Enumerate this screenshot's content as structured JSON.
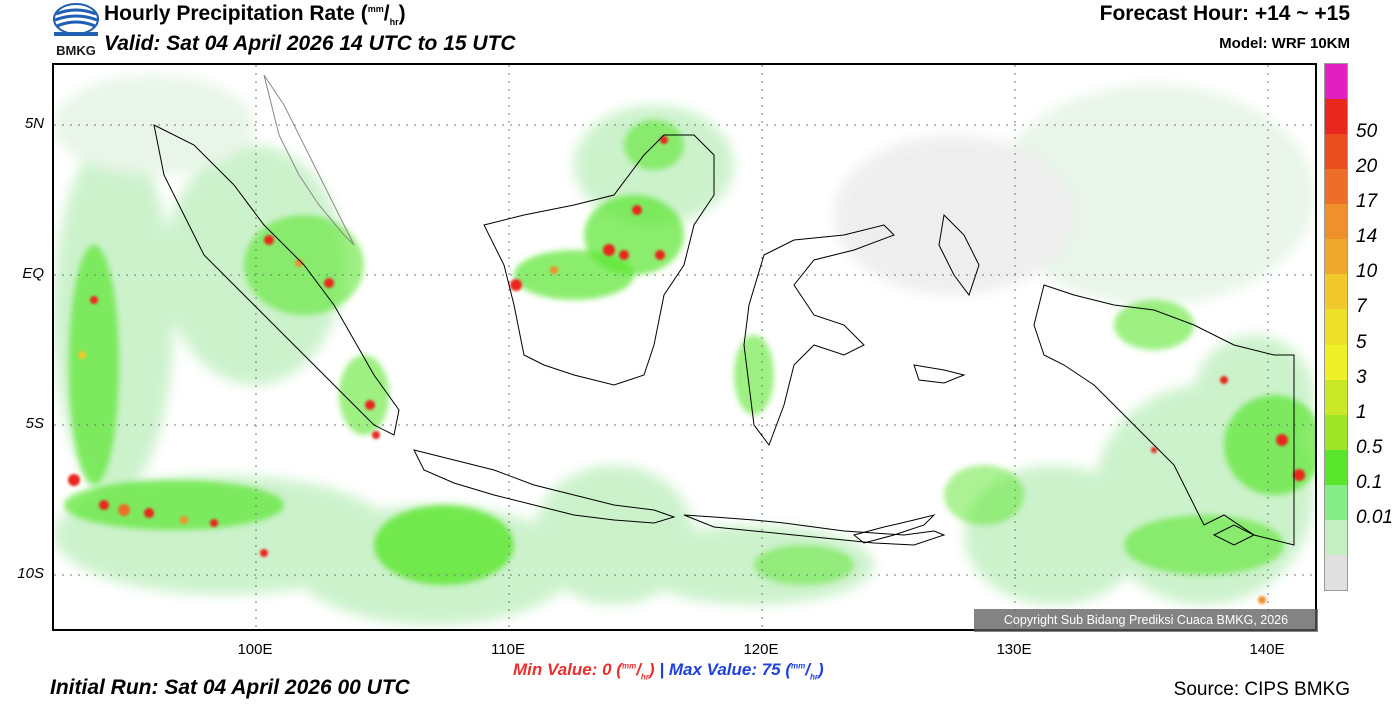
{
  "logo": {
    "icon": "bmkg-logo-icon",
    "text": "BMKG",
    "colors": [
      "#1f5fb4",
      "#ffffff"
    ]
  },
  "header": {
    "title_main": "Hourly Precipitation Rate (",
    "title_unit_sup": "mm",
    "title_unit_sub": "hr",
    "title_close": ")",
    "valid": "Valid: Sat 04 April 2026 14 UTC to 15 UTC",
    "forecast_hour": "Forecast Hour: +14 ~ +15",
    "model": "Model: WRF 10KM"
  },
  "map": {
    "lat_labels": [
      "5N",
      "EQ",
      "5S",
      "10S"
    ],
    "lon_labels": [
      "100E",
      "110E",
      "120E",
      "130E",
      "140E"
    ],
    "copyright": "Copyright Sub Bidang Prediksi Cuaca BMKG, 2026"
  },
  "colorbar": {
    "segments": [
      {
        "color": "#e020c0"
      },
      {
        "color": "#e8281e"
      },
      {
        "color": "#e84e1e"
      },
      {
        "color": "#ec6e28"
      },
      {
        "color": "#f0902c"
      },
      {
        "color": "#f0a82c"
      },
      {
        "color": "#f0c82c"
      },
      {
        "color": "#ece028"
      },
      {
        "color": "#f0f028"
      },
      {
        "color": "#c8e828"
      },
      {
        "color": "#a0e628"
      },
      {
        "color": "#5ae62c"
      },
      {
        "color": "#86ec86"
      },
      {
        "color": "#c4f0c4"
      },
      {
        "color": "#e0e0e0"
      }
    ],
    "labels": [
      "50",
      "20",
      "17",
      "14",
      "10",
      "7",
      "5",
      "3",
      "1",
      "0.5",
      "0.1",
      "0.01"
    ]
  },
  "footer": {
    "min_label": "Min Value:   0 (",
    "min_color": "#e83030",
    "max_label": "Max Value:  75 (",
    "max_color": "#2040e0",
    "unit_sup": "mm",
    "unit_sub": "hr",
    "unit_close": ")",
    "separator": "|",
    "initial_run": "Initial Run: Sat 04 April 2026 00 UTC",
    "source": "Source: CIPS BMKG"
  }
}
